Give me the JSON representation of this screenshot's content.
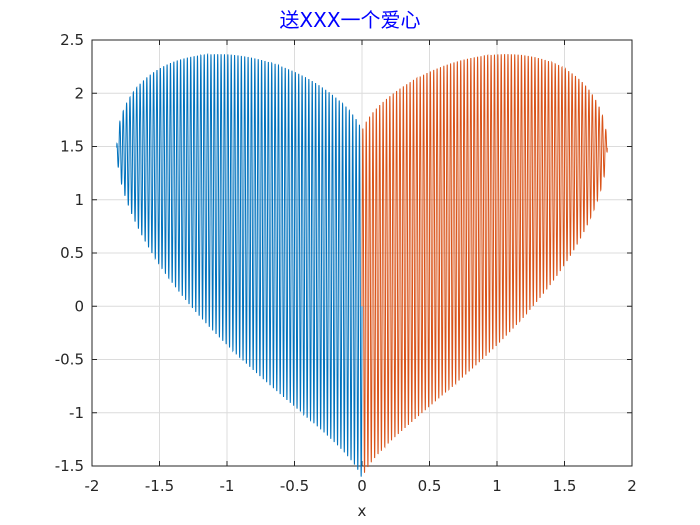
{
  "chart_data": {
    "type": "line",
    "title": "送XXX一个爱心",
    "xlabel": "x",
    "ylabel": "",
    "xlim": [
      -2,
      2
    ],
    "ylim": [
      -1.5,
      2.5
    ],
    "grid": true,
    "x_ticks": [
      "-2",
      "-1.5",
      "-1",
      "-0.5",
      "0",
      "0.5",
      "1",
      "1.5",
      "2"
    ],
    "y_ticks": [
      "-1.5",
      "-1",
      "-0.5",
      "0",
      "0.5",
      "1",
      "1.5",
      "2",
      "2.5"
    ],
    "function": "y = |x|^(2/3) + 0.9*sqrt(3.3 - x^2)*sin(a*pi*x)",
    "series": [
      {
        "x_range": [
          -1.8166,
          0
        ],
        "color": "#0072bd"
      },
      {
        "x_range": [
          0,
          1.8166
        ],
        "color": "#d95319"
      }
    ],
    "oscillation_frequency": 80
  }
}
